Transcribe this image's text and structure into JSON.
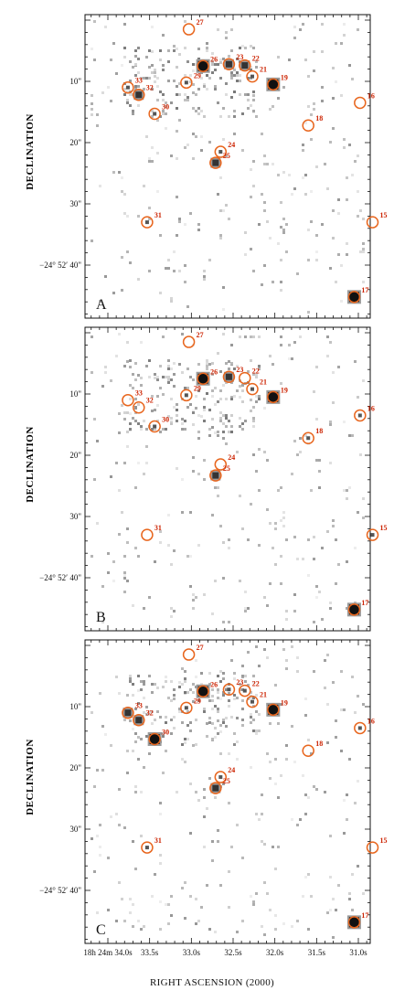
{
  "figure": {
    "y_axis_label": "DECLINATION",
    "x_axis_label": "RIGHT ASCENSION (2000)",
    "dec_tick_labels": [
      "10\"",
      "20\"",
      "30\"",
      "−24° 52′ 40\""
    ],
    "ra_tick_labels": [
      "18h 24m 34.0s",
      "33.5s",
      "33.0s",
      "32.5s",
      "32.0s",
      "31.5s",
      "31.0s"
    ],
    "ra_tick_values": [
      34.0,
      33.5,
      33.0,
      32.5,
      32.0,
      31.5,
      31.0
    ],
    "dec_tick_values": [
      10,
      20,
      30,
      40
    ],
    "colors": {
      "circle": "#e8661e",
      "label": "#cc2200",
      "axis": "#111111"
    }
  },
  "panels": [
    {
      "letter": "A",
      "sources": [
        {
          "id": "27",
          "ra": 33.03,
          "dec": 1.5,
          "det": 0
        },
        {
          "id": "26",
          "ra": 32.86,
          "dec": 7.5,
          "det": 3
        },
        {
          "id": "23",
          "ra": 32.55,
          "dec": 7.2,
          "det": 2
        },
        {
          "id": "22",
          "ra": 32.36,
          "dec": 7.4,
          "det": 2
        },
        {
          "id": "21",
          "ra": 32.27,
          "dec": 9.2,
          "det": 1
        },
        {
          "id": "19",
          "ra": 32.02,
          "dec": 10.5,
          "det": 3
        },
        {
          "id": "29",
          "ra": 33.06,
          "dec": 10.2,
          "det": 1
        },
        {
          "id": "33",
          "ra": 33.76,
          "dec": 11.0,
          "det": 1
        },
        {
          "id": "32",
          "ra": 33.63,
          "dec": 12.2,
          "det": 2
        },
        {
          "id": "16",
          "ra": 30.98,
          "dec": 13.5,
          "det": 0
        },
        {
          "id": "30",
          "ra": 33.44,
          "dec": 15.3,
          "det": 1
        },
        {
          "id": "18",
          "ra": 31.6,
          "dec": 17.2,
          "det": 0
        },
        {
          "id": "24",
          "ra": 32.65,
          "dec": 21.5,
          "det": 1
        },
        {
          "id": "25",
          "ra": 32.71,
          "dec": 23.3,
          "det": 2
        },
        {
          "id": "31",
          "ra": 33.53,
          "dec": 33.0,
          "det": 1
        },
        {
          "id": "15",
          "ra": 30.83,
          "dec": 33.0,
          "det": 0
        },
        {
          "id": "17",
          "ra": 31.05,
          "dec": 45.2,
          "det": 3
        }
      ]
    },
    {
      "letter": "B",
      "sources": [
        {
          "id": "27",
          "ra": 33.03,
          "dec": 1.5,
          "det": 0
        },
        {
          "id": "26",
          "ra": 32.86,
          "dec": 7.5,
          "det": 3
        },
        {
          "id": "23",
          "ra": 32.55,
          "dec": 7.2,
          "det": 2
        },
        {
          "id": "22",
          "ra": 32.36,
          "dec": 7.4,
          "det": 0
        },
        {
          "id": "21",
          "ra": 32.27,
          "dec": 9.2,
          "det": 1
        },
        {
          "id": "19",
          "ra": 32.02,
          "dec": 10.5,
          "det": 3
        },
        {
          "id": "29",
          "ra": 33.06,
          "dec": 10.2,
          "det": 1
        },
        {
          "id": "33",
          "ra": 33.76,
          "dec": 11.0,
          "det": 0
        },
        {
          "id": "32",
          "ra": 33.63,
          "dec": 12.2,
          "det": 0
        },
        {
          "id": "16",
          "ra": 30.98,
          "dec": 13.5,
          "det": 1
        },
        {
          "id": "30",
          "ra": 33.44,
          "dec": 15.3,
          "det": 1
        },
        {
          "id": "18",
          "ra": 31.6,
          "dec": 17.2,
          "det": 1
        },
        {
          "id": "24",
          "ra": 32.65,
          "dec": 21.5,
          "det": 0
        },
        {
          "id": "25",
          "ra": 32.71,
          "dec": 23.3,
          "det": 2
        },
        {
          "id": "31",
          "ra": 33.53,
          "dec": 33.0,
          "det": 0
        },
        {
          "id": "15",
          "ra": 30.83,
          "dec": 33.0,
          "det": 1
        },
        {
          "id": "17",
          "ra": 31.05,
          "dec": 45.2,
          "det": 3
        }
      ]
    },
    {
      "letter": "C",
      "sources": [
        {
          "id": "27",
          "ra": 33.03,
          "dec": 1.5,
          "det": 0
        },
        {
          "id": "26",
          "ra": 32.86,
          "dec": 7.5,
          "det": 3
        },
        {
          "id": "23",
          "ra": 32.55,
          "dec": 7.2,
          "det": 1
        },
        {
          "id": "22",
          "ra": 32.36,
          "dec": 7.4,
          "det": 1
        },
        {
          "id": "21",
          "ra": 32.27,
          "dec": 9.2,
          "det": 1
        },
        {
          "id": "19",
          "ra": 32.02,
          "dec": 10.5,
          "det": 3
        },
        {
          "id": "29",
          "ra": 33.06,
          "dec": 10.2,
          "det": 1
        },
        {
          "id": "33",
          "ra": 33.76,
          "dec": 11.0,
          "det": 2
        },
        {
          "id": "32",
          "ra": 33.63,
          "dec": 12.2,
          "det": 2
        },
        {
          "id": "16",
          "ra": 30.98,
          "dec": 13.5,
          "det": 1
        },
        {
          "id": "30",
          "ra": 33.44,
          "dec": 15.3,
          "det": 3
        },
        {
          "id": "18",
          "ra": 31.6,
          "dec": 17.2,
          "det": 0
        },
        {
          "id": "24",
          "ra": 32.65,
          "dec": 21.5,
          "det": 1
        },
        {
          "id": "25",
          "ra": 32.71,
          "dec": 23.3,
          "det": 2
        },
        {
          "id": "31",
          "ra": 33.53,
          "dec": 33.0,
          "det": 1
        },
        {
          "id": "15",
          "ra": 30.83,
          "dec": 33.0,
          "det": 0
        },
        {
          "id": "17",
          "ra": 31.05,
          "dec": 45.2,
          "det": 3
        }
      ]
    }
  ]
}
